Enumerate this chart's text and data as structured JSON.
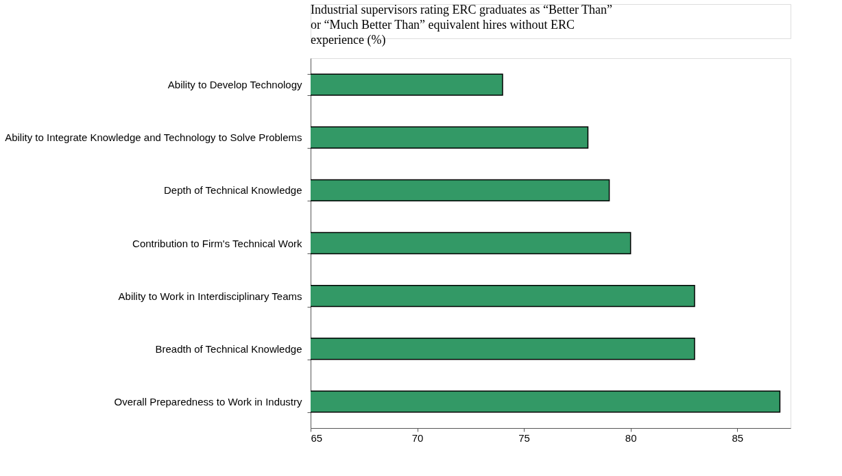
{
  "chart_data": {
    "type": "bar",
    "orientation": "horizontal",
    "categories": [
      "Ability to Develop Technology",
      "Ability to Integrate Knowledge and Technology to Solve Problems",
      "Depth of Technical Knowledge",
      "Contribution to Firm's Technical Work",
      "Ability to Work in Interdisciplinary Teams",
      "Breadth of Technical Knowledge",
      "Overall Preparedness to Work in Industry"
    ],
    "values": [
      74,
      78,
      79,
      80,
      83,
      83,
      87
    ],
    "color": "#339966",
    "xlim": [
      65,
      87.5
    ],
    "xticks": [
      65,
      70,
      75,
      80,
      85
    ],
    "grid": false,
    "annotations": [
      "Industrial supervisors rating ERC graduates as “Better Than” or “Much Better Than” equivalent hires without ERC experience (%)"
    ]
  }
}
